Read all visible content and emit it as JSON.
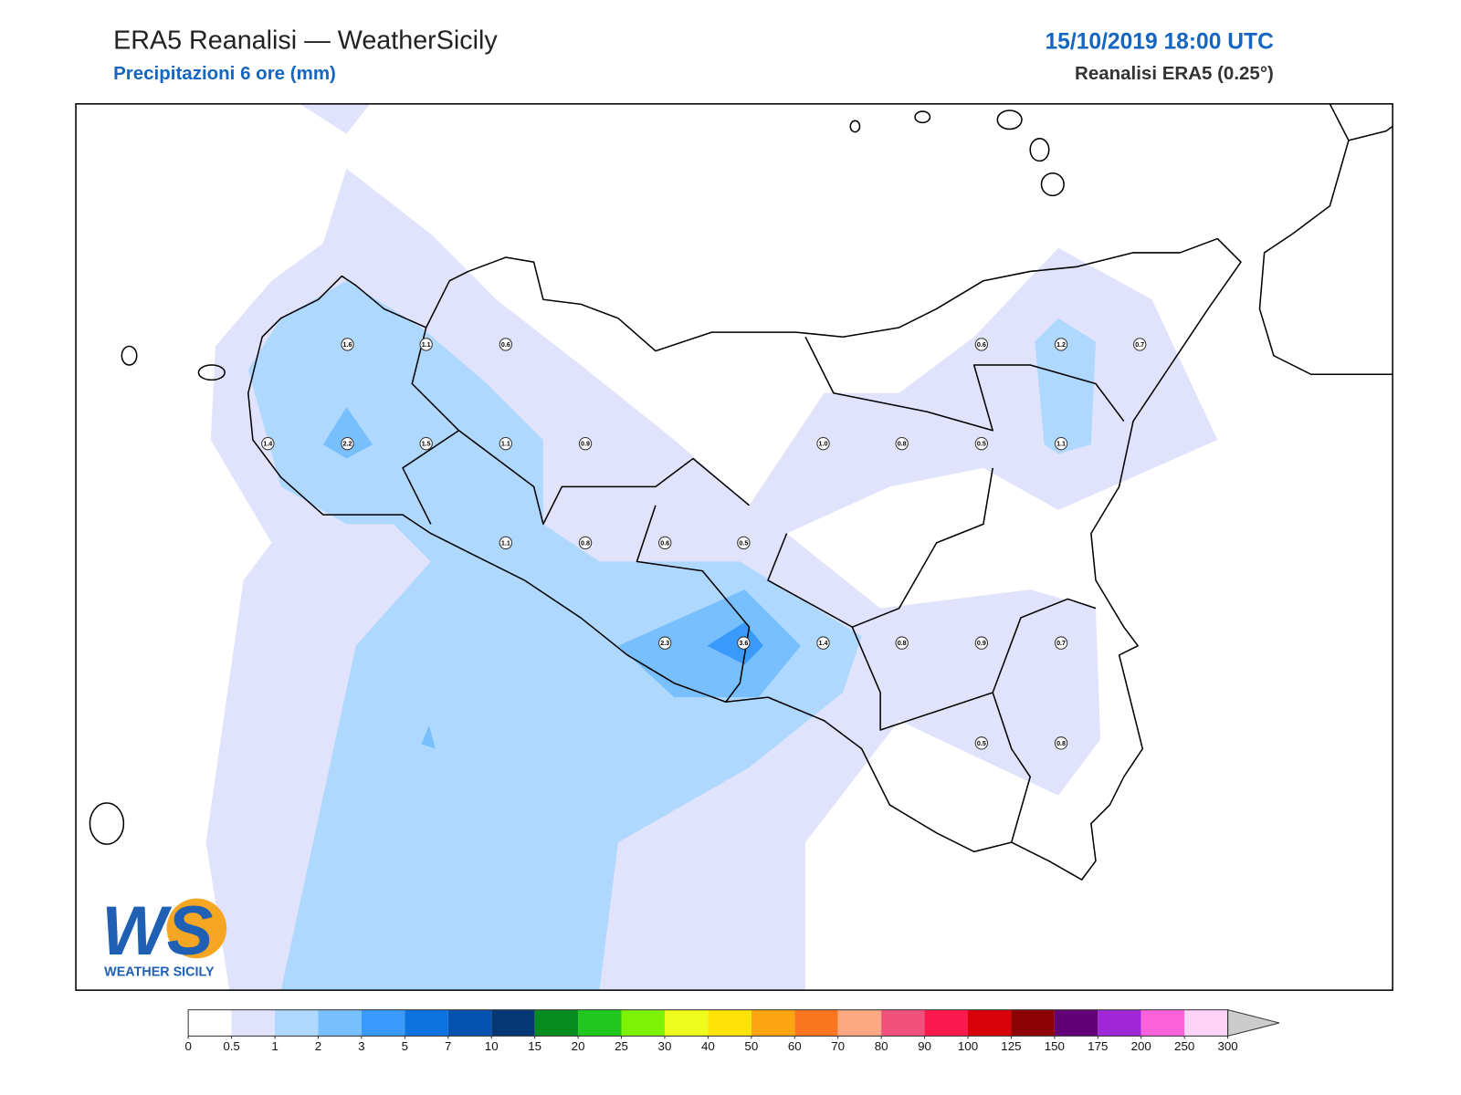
{
  "header": {
    "title": "ERA5 Reanalisi — WeatherSicily",
    "subtitle": "Precipitazioni 6 ore (mm)",
    "date": "15/10/2019 18:00 UTC",
    "model": "Reanalisi ERA5 (0.25°)"
  },
  "points": [
    "1.6",
    "1.1",
    "0.6",
    "0.6",
    "1.2",
    "0.7",
    "1.4",
    "2.2",
    "1.5",
    "1.1",
    "0.9",
    "1.0",
    "0.8",
    "0.5",
    "1.1",
    "1.1",
    "0.8",
    "0.6",
    "0.5",
    "2.3",
    "3.6",
    "1.4",
    "0.8",
    "0.9",
    "0.7",
    "0.5",
    "0.8"
  ],
  "colorbar": {
    "ticks": [
      0,
      0.5,
      1,
      2,
      3,
      5,
      7,
      10,
      15,
      20,
      25,
      30,
      40,
      50,
      60,
      70,
      80,
      90,
      100,
      125,
      150,
      175,
      200,
      250,
      300
    ],
    "colors": [
      "#ffffff",
      "#e0e3fb",
      "#aed8fe",
      "#77bffd",
      "#3a9afb",
      "#0d73e0",
      "#0652b0",
      "#063775",
      "#058c1e",
      "#20c81e",
      "#7df203",
      "#eefb1c",
      "#fde308",
      "#fda411",
      "#fc7620",
      "#fca983",
      "#f0507c",
      "#fb1a4e",
      "#d90109",
      "#8d0204",
      "#630077",
      "#a027d8",
      "#fc62da",
      "#fdd3f7"
    ],
    "extend_color": "#cccccc"
  },
  "logo": {
    "letters": "WS",
    "text": "WEATHER SICILY"
  }
}
